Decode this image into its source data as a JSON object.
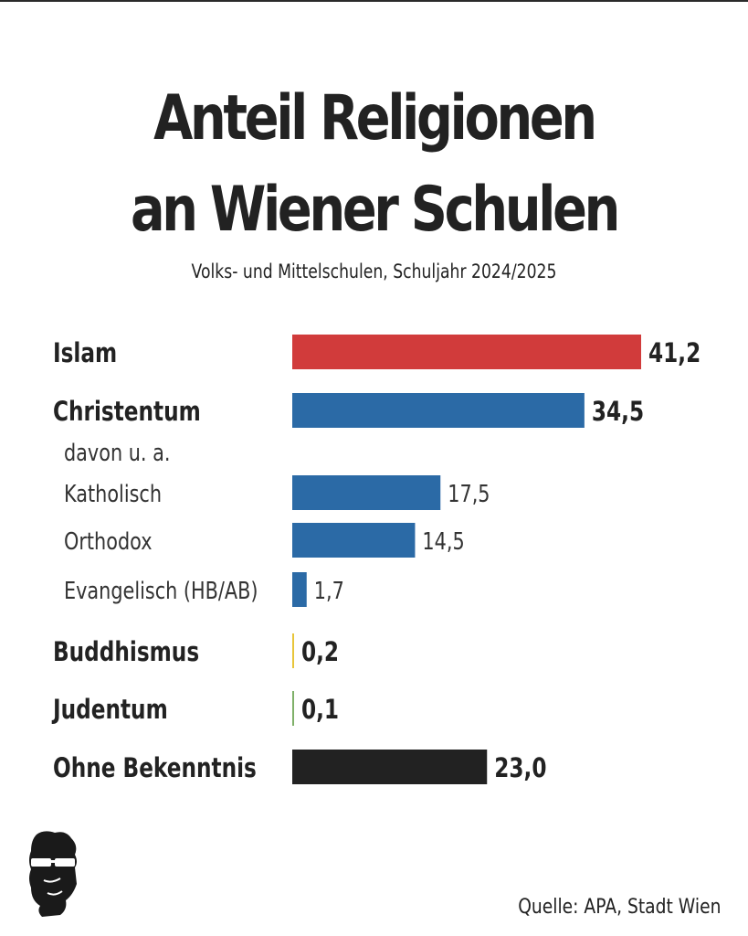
{
  "header": {
    "title_line1": "Anteil Religionen",
    "title_line2": "an Wiener Schulen",
    "subtitle": "Volks- und Mittelschulen, Schuljahr 2024/2025"
  },
  "footer": {
    "source": "Quelle: APA, Stadt Wien"
  },
  "colors": {
    "islam": "#d13b3b",
    "christentum": "#2b6aa6",
    "buddhismus": "#e8c53a",
    "judentum": "#7fb069",
    "ohne_bekenntnis": "#222222"
  },
  "chart_data": {
    "type": "bar",
    "orientation": "horizontal",
    "title": "Anteil Religionen an Wiener Schulen",
    "subtitle": "Volks- und Mittelschulen, Schuljahr 2024/2025",
    "categories": [
      "Islam",
      "Christentum",
      "Katholisch",
      "Orthodox",
      "Evangelisch (HB/AB)",
      "Buddhismus",
      "Judentum",
      "Ohne Bekenntnis"
    ],
    "values": [
      41.2,
      34.5,
      17.5,
      14.5,
      1.7,
      0.2,
      0.1,
      23.0
    ],
    "value_labels": [
      "41,2",
      "34,5",
      "17,5",
      "14,5",
      "1,7",
      "0,2",
      "0,1",
      "23,0"
    ],
    "group_note": "davon u. a.",
    "rows": [
      {
        "label": "Islam",
        "value": 41.2,
        "value_label": "41,2",
        "color": "#d13b3b",
        "style": "main"
      },
      {
        "label": "Christentum",
        "value": 34.5,
        "value_label": "34,5",
        "color": "#2b6aa6",
        "style": "main"
      },
      {
        "label": "davon u. a.",
        "value": null,
        "value_label": "",
        "color": "",
        "style": "note"
      },
      {
        "label": "Katholisch",
        "value": 17.5,
        "value_label": "17,5",
        "color": "#2b6aa6",
        "style": "sub"
      },
      {
        "label": "Orthodox",
        "value": 14.5,
        "value_label": "14,5",
        "color": "#2b6aa6",
        "style": "sub"
      },
      {
        "label": "Evangelisch (HB/AB)",
        "value": 1.7,
        "value_label": "1,7",
        "color": "#2b6aa6",
        "style": "sub"
      },
      {
        "label": "Buddhismus",
        "value": 0.2,
        "value_label": "0,2",
        "color": "#e8c53a",
        "style": "main"
      },
      {
        "label": "Judentum",
        "value": 0.1,
        "value_label": "0,1",
        "color": "#7fb069",
        "style": "main"
      },
      {
        "label": "Ohne Bekenntnis",
        "value": 23.0,
        "value_label": "23,0",
        "color": "#222222",
        "style": "main"
      }
    ],
    "xlim": [
      0,
      41.2
    ],
    "grid": false,
    "legend": "none"
  }
}
